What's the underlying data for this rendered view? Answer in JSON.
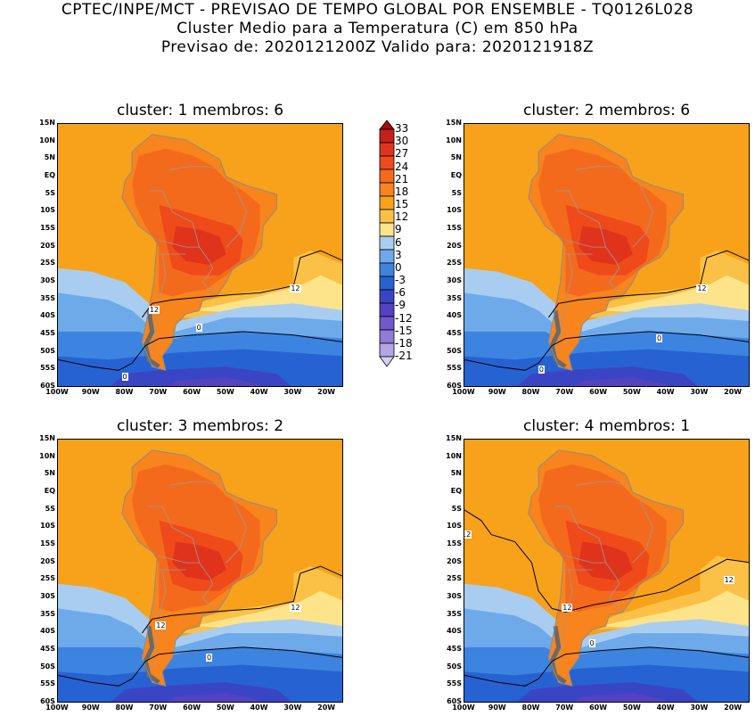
{
  "header": {
    "line1": "CPTEC/INPE/MCT - PREVISAO DE TEMPO GLOBAL POR ENSEMBLE - TQ0126L028",
    "line2": "Cluster Medio para a Temperatura (C) em 850 hPa",
    "line3": "Previsao de: 2020121200Z   Valido para: 2020121918Z"
  },
  "panels": [
    {
      "title": "cluster: 1   membros: 6",
      "contour_labels": [
        "12",
        "12",
        "0",
        "0"
      ]
    },
    {
      "title": "cluster: 2   membros: 6",
      "contour_labels": [
        "12",
        "0",
        "0"
      ]
    },
    {
      "title": "cluster: 3   membros: 2",
      "contour_labels": [
        "12",
        "12",
        "0"
      ]
    },
    {
      "title": "cluster: 4   membros: 1",
      "contour_labels": [
        "12",
        "12",
        "12",
        "0"
      ]
    }
  ],
  "lat_labels": [
    "15N",
    "10N",
    "5N",
    "EQ",
    "5S",
    "10S",
    "15S",
    "20S",
    "25S",
    "30S",
    "35S",
    "40S",
    "45S",
    "50S",
    "55S",
    "60S"
  ],
  "lon_labels": [
    "100W",
    "90W",
    "80W",
    "70W",
    "60W",
    "50W",
    "40W",
    "30W",
    "20W"
  ],
  "colorbar": {
    "levels": [
      "33",
      "30",
      "27",
      "24",
      "21",
      "18",
      "15",
      "12",
      "9",
      "6",
      "3",
      "0",
      "-3",
      "-6",
      "-9",
      "-12",
      "-15",
      "-18",
      "-21"
    ],
    "colors": [
      "#a50c0c",
      "#c4201c",
      "#e0331c",
      "#ef4a1a",
      "#f46a1c",
      "#f7841c",
      "#f7a21a",
      "#fbc146",
      "#fde48b",
      "#a9cdf1",
      "#6eaaea",
      "#3d83e0",
      "#2762d2",
      "#3a45c4",
      "#5542c0",
      "#7158cc",
      "#8f7bd8",
      "#b3a6e6",
      "#d6d0f3"
    ]
  }
}
